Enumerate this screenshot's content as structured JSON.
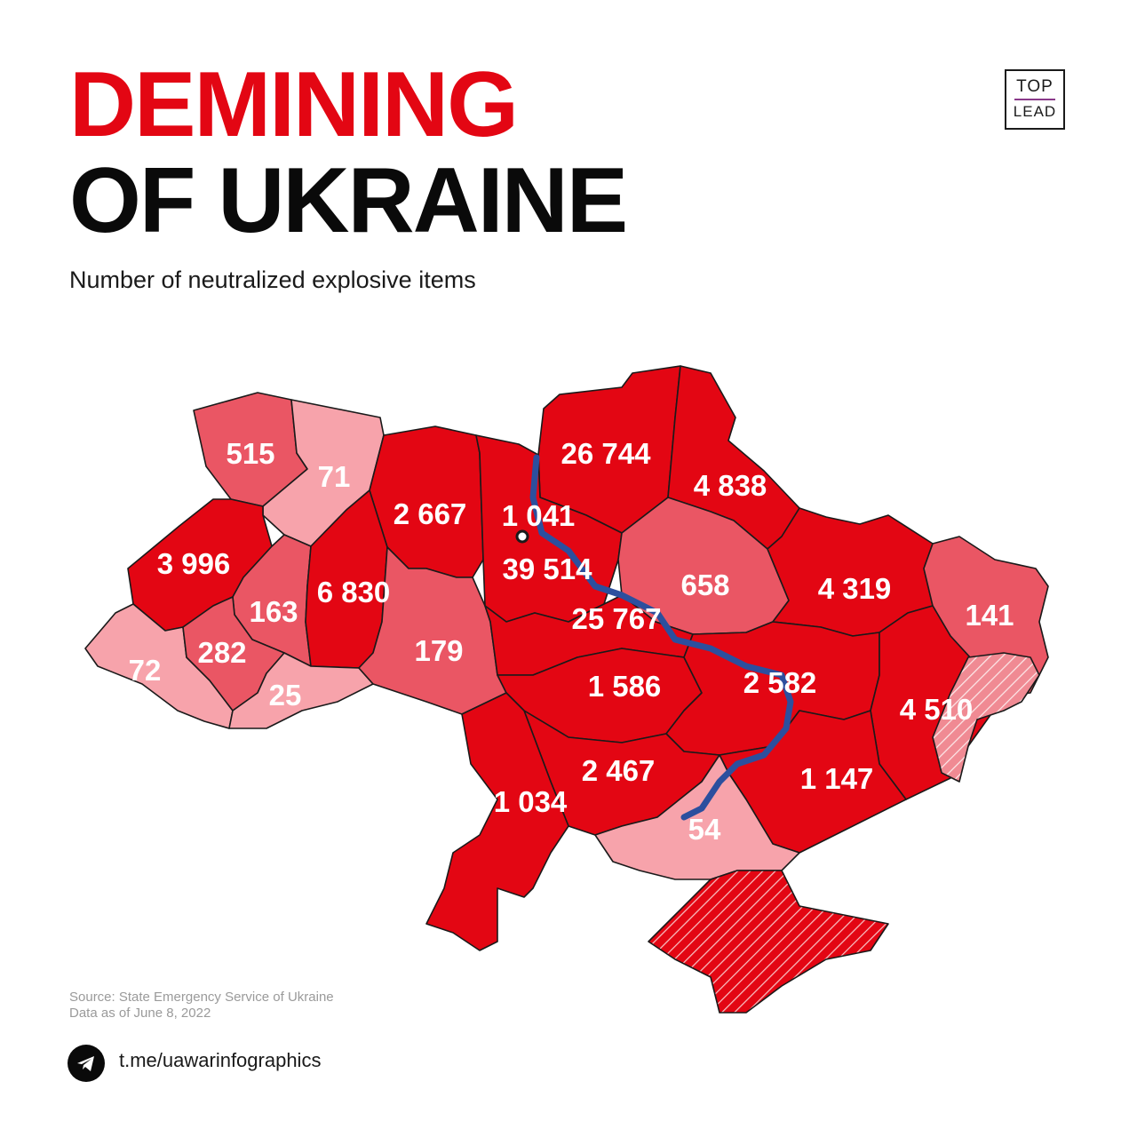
{
  "title_line1": "DEMINING",
  "title_line2": "OF UKRAINE",
  "subtitle": "Number of neutralized explosive items",
  "logo": {
    "top": "TOP",
    "bottom": "LEAD"
  },
  "source": "Source: State Emergency Service of Ukraine",
  "data_date": "Data as of June 8, 2022",
  "telegram": "t.me/uawarinfographics",
  "colors": {
    "high": "#e30613",
    "medium": "#ea5664",
    "low": "#f7a3ab",
    "river": "#2c4f9e",
    "occupied_hatch": "#ffffff"
  },
  "regions": [
    {
      "id": "volyn",
      "value": "515",
      "level": "medium"
    },
    {
      "id": "rivne",
      "value": "71",
      "level": "low"
    },
    {
      "id": "zhytomyr",
      "value": "2 667",
      "level": "high"
    },
    {
      "id": "kyiv-city",
      "value": "1 041",
      "level": "high"
    },
    {
      "id": "chernihiv",
      "value": "26 744",
      "level": "high"
    },
    {
      "id": "sumy",
      "value": "4 838",
      "level": "high"
    },
    {
      "id": "lviv",
      "value": "3 996",
      "level": "high"
    },
    {
      "id": "ternopil",
      "value": "163",
      "level": "medium"
    },
    {
      "id": "khmelnytskyi",
      "value": "6 830",
      "level": "high"
    },
    {
      "id": "kyiv-oblast",
      "value": "39 514",
      "level": "high"
    },
    {
      "id": "poltava",
      "value": "658",
      "level": "medium"
    },
    {
      "id": "kharkiv",
      "value": "4 319",
      "level": "high"
    },
    {
      "id": "luhansk",
      "value": "141",
      "level": "medium"
    },
    {
      "id": "zakarpattia",
      "value": "72",
      "level": "low"
    },
    {
      "id": "ivano-frankivsk",
      "value": "282",
      "level": "medium"
    },
    {
      "id": "chernivtsi",
      "value": "25",
      "level": "low"
    },
    {
      "id": "vinnytsia",
      "value": "179",
      "level": "medium"
    },
    {
      "id": "cherkasy",
      "value": "25 767",
      "level": "high"
    },
    {
      "id": "kirovohrad",
      "value": "1 586",
      "level": "high"
    },
    {
      "id": "dnipropetrovsk",
      "value": "2 582",
      "level": "high"
    },
    {
      "id": "donetsk",
      "value": "4 510",
      "level": "high"
    },
    {
      "id": "zaporizhzhia",
      "value": "1 147",
      "level": "high"
    },
    {
      "id": "mykolaiv",
      "value": "2 467",
      "level": "high"
    },
    {
      "id": "odesa",
      "value": "1 034",
      "level": "high"
    },
    {
      "id": "kherson",
      "value": "54",
      "level": "low"
    },
    {
      "id": "crimea",
      "value": "",
      "level": "high"
    }
  ]
}
